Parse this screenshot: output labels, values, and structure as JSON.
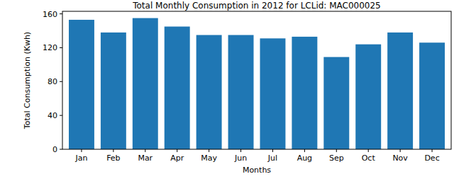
{
  "chart_data": {
    "type": "bar",
    "title": "Total Monthly Consumption in 2012 for LCLid: MAC000025",
    "x_label": "Months",
    "y_label": "Total Consumption (Kwh)",
    "categories": [
      "Jan",
      "Feb",
      "Mar",
      "Apr",
      "May",
      "Jun",
      "Jul",
      "Aug",
      "Sep",
      "Oct",
      "Nov",
      "Dec"
    ],
    "values": [
      153,
      138,
      155,
      145,
      135,
      135,
      131,
      133,
      109,
      124,
      138,
      126
    ],
    "color": "#1f77b4",
    "ylim": [
      0,
      163
    ],
    "yticks": [
      0,
      40,
      80,
      120,
      160
    ],
    "grid": false
  }
}
